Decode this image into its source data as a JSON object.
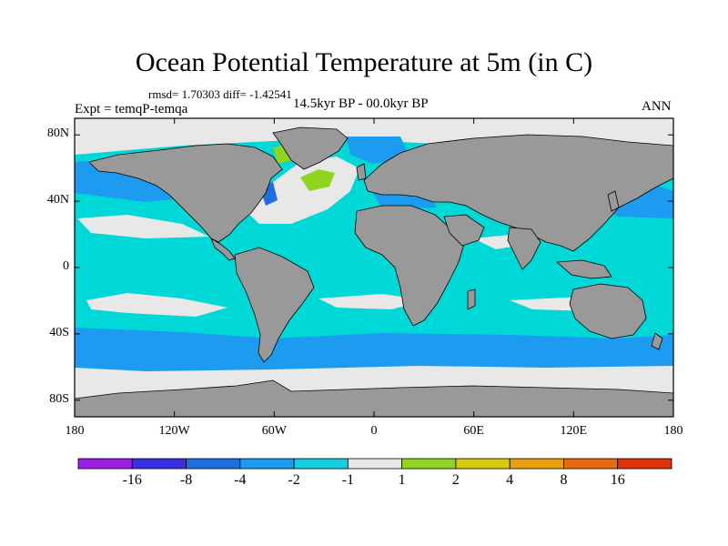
{
  "title": "Ocean Potential Temperature at 5m (in C)",
  "stats": "rmsd= 1.70303 diff= -1.42541",
  "period": "14.5kyr BP - 00.0kyr BP",
  "experiment": "Expt = temqP-temqa",
  "season": "ANN",
  "map": {
    "lon_range": [
      -180,
      180
    ],
    "lat_range": [
      -90,
      90
    ],
    "x_ticks": [
      {
        "lon": -180,
        "label": "180"
      },
      {
        "lon": -120,
        "label": "120W"
      },
      {
        "lon": -60,
        "label": "60W"
      },
      {
        "lon": 0,
        "label": "0"
      },
      {
        "lon": 60,
        "label": "60E"
      },
      {
        "lon": 120,
        "label": "120E"
      },
      {
        "lon": 180,
        "label": "180"
      }
    ],
    "y_ticks": [
      {
        "lat": 80,
        "label": "80N"
      },
      {
        "lat": 40,
        "label": "40N"
      },
      {
        "lat": 0,
        "label": "0"
      },
      {
        "lat": -40,
        "label": "40S"
      },
      {
        "lat": -80,
        "label": "80S"
      }
    ],
    "land_color": "#999999",
    "ocean_base_color": "#00d8d8"
  },
  "colorbar": {
    "colors": [
      "#9b1fe8",
      "#3a2fe0",
      "#1d6fe0",
      "#1c9bf0",
      "#14cde0",
      "#e8e8e8",
      "#8fd41e",
      "#d9c80c",
      "#e8a00c",
      "#e86a0c",
      "#e0300c"
    ],
    "labels": [
      "-16",
      "-8",
      "-4",
      "-2",
      "-1",
      "1",
      "2",
      "4",
      "8",
      "16"
    ]
  }
}
